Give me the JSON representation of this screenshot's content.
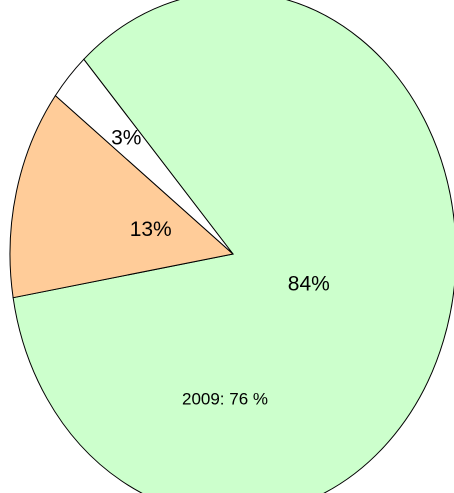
{
  "chart_data": {
    "type": "pie",
    "values": [
      84,
      13,
      3
    ],
    "value_labels": [
      "84%",
      "13%",
      "3%"
    ],
    "colors": [
      "#ccffcc",
      "#ffcc99",
      "#ffffff"
    ],
    "annotation": "2009: 76 %"
  }
}
